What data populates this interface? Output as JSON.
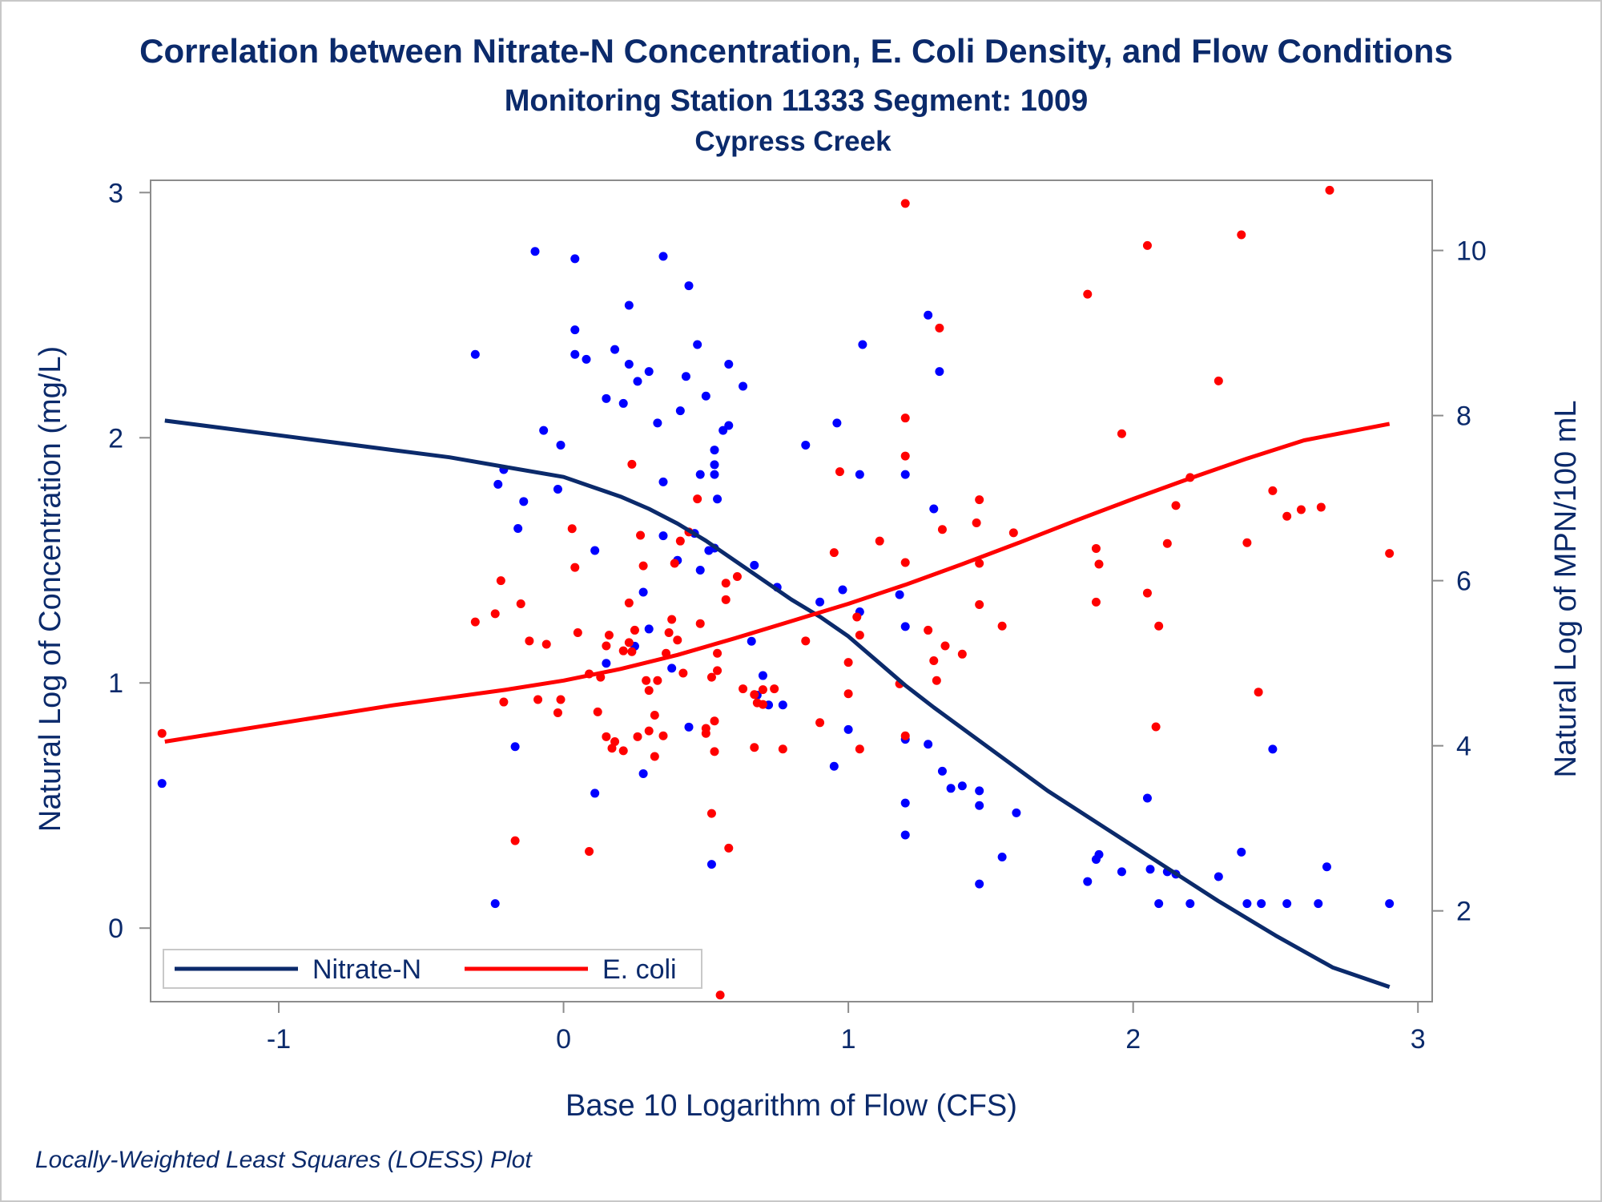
{
  "chart_data": {
    "type": "scatter",
    "title": "Correlation between Nitrate-N Concentration, E. Coli Density, and Flow Conditions",
    "subtitle": "Monitoring Station 11333 Segment: 1009",
    "subtitle2": "Cypress Creek",
    "xlabel": "Base 10 Logarithm of Flow (CFS)",
    "ylabel": "Natural Log of Concentration (mg/L)",
    "y2label": "Natural Log of MPN/100 mL",
    "footnote": "Locally-Weighted Least Squares (LOESS) Plot",
    "xlim": [
      -1.45,
      3.05
    ],
    "ylim": [
      -0.3,
      3.05
    ],
    "y2lim": [
      0.9,
      10.85
    ],
    "xticks": [
      "-1",
      "0",
      "1",
      "2",
      "3"
    ],
    "yticks": [
      "0",
      "1",
      "2",
      "3"
    ],
    "y2ticks": [
      "2",
      "4",
      "6",
      "8",
      "10"
    ],
    "colors": {
      "nitrate": "#0b2a6b",
      "ecoli": "#ff0000",
      "nitrate_points": "#0000ff",
      "ecoli_points": "#ff0000"
    },
    "legend": {
      "position": "bottom-left",
      "entries": [
        "Nitrate-N",
        "E. coli"
      ]
    },
    "series": [
      {
        "name": "Nitrate-N",
        "axis": "left",
        "points": [
          [
            -1.41,
            0.59
          ],
          [
            -0.31,
            2.34
          ],
          [
            -0.24,
            0.1
          ],
          [
            -0.23,
            1.81
          ],
          [
            -0.21,
            1.87
          ],
          [
            -0.17,
            0.74
          ],
          [
            -0.16,
            1.63
          ],
          [
            -0.14,
            1.74
          ],
          [
            -0.1,
            2.76
          ],
          [
            -0.07,
            2.03
          ],
          [
            -0.02,
            1.79
          ],
          [
            -0.01,
            1.97
          ],
          [
            0.04,
            2.73
          ],
          [
            0.04,
            2.44
          ],
          [
            0.04,
            2.34
          ],
          [
            0.08,
            2.32
          ],
          [
            0.11,
            1.54
          ],
          [
            0.11,
            0.55
          ],
          [
            0.15,
            1.08
          ],
          [
            0.15,
            2.16
          ],
          [
            0.18,
            2.36
          ],
          [
            0.21,
            2.14
          ],
          [
            0.23,
            2.3
          ],
          [
            0.23,
            2.54
          ],
          [
            0.25,
            1.15
          ],
          [
            0.26,
            2.23
          ],
          [
            0.28,
            0.63
          ],
          [
            0.28,
            1.37
          ],
          [
            0.3,
            1.22
          ],
          [
            0.3,
            2.27
          ],
          [
            0.33,
            2.06
          ],
          [
            0.35,
            1.6
          ],
          [
            0.35,
            1.82
          ],
          [
            0.35,
            2.74
          ],
          [
            0.38,
            1.06
          ],
          [
            0.4,
            1.5
          ],
          [
            0.41,
            2.11
          ],
          [
            0.43,
            2.25
          ],
          [
            0.44,
            2.62
          ],
          [
            0.44,
            0.82
          ],
          [
            0.46,
            1.61
          ],
          [
            0.47,
            2.38
          ],
          [
            0.48,
            1.46
          ],
          [
            0.48,
            1.85
          ],
          [
            0.5,
            2.17
          ],
          [
            0.51,
            1.54
          ],
          [
            0.52,
            0.26
          ],
          [
            0.53,
            1.55
          ],
          [
            0.53,
            1.95
          ],
          [
            0.53,
            1.85
          ],
          [
            0.53,
            1.89
          ],
          [
            0.54,
            1.75
          ],
          [
            0.56,
            2.03
          ],
          [
            0.58,
            2.05
          ],
          [
            0.58,
            2.3
          ],
          [
            0.63,
            2.21
          ],
          [
            0.66,
            1.17
          ],
          [
            0.67,
            1.48
          ],
          [
            0.68,
            0.95
          ],
          [
            0.7,
            1.03
          ],
          [
            0.72,
            0.91
          ],
          [
            0.75,
            1.39
          ],
          [
            0.77,
            0.91
          ],
          [
            0.85,
            1.97
          ],
          [
            0.9,
            1.33
          ],
          [
            0.95,
            0.66
          ],
          [
            0.96,
            2.06
          ],
          [
            0.98,
            1.38
          ],
          [
            1.0,
            0.81
          ],
          [
            1.04,
            1.29
          ],
          [
            1.04,
            1.85
          ],
          [
            1.05,
            2.38
          ],
          [
            1.18,
            1.36
          ],
          [
            1.2,
            0.77
          ],
          [
            1.2,
            0.51
          ],
          [
            1.2,
            0.38
          ],
          [
            1.2,
            1.85
          ],
          [
            1.2,
            1.23
          ],
          [
            1.28,
            2.5
          ],
          [
            1.28,
            0.75
          ],
          [
            1.3,
            1.71
          ],
          [
            1.32,
            2.27
          ],
          [
            1.33,
            0.64
          ],
          [
            1.36,
            0.57
          ],
          [
            1.4,
            0.58
          ],
          [
            1.46,
            0.56
          ],
          [
            1.46,
            0.5
          ],
          [
            1.46,
            0.18
          ],
          [
            1.54,
            0.29
          ],
          [
            1.59,
            0.47
          ],
          [
            1.84,
            0.19
          ],
          [
            1.87,
            0.28
          ],
          [
            1.88,
            0.3
          ],
          [
            1.96,
            0.23
          ],
          [
            2.05,
            0.53
          ],
          [
            2.06,
            0.24
          ],
          [
            2.09,
            0.1
          ],
          [
            2.12,
            0.23
          ],
          [
            2.15,
            0.22
          ],
          [
            2.2,
            0.1
          ],
          [
            2.3,
            0.21
          ],
          [
            2.38,
            0.31
          ],
          [
            2.4,
            0.1
          ],
          [
            2.45,
            0.1
          ],
          [
            2.49,
            0.73
          ],
          [
            2.54,
            0.1
          ],
          [
            2.65,
            0.1
          ],
          [
            2.68,
            0.25
          ],
          [
            2.9,
            0.1
          ]
        ],
        "loess": [
          [
            -1.4,
            2.07
          ],
          [
            -1.2,
            2.04
          ],
          [
            -1.0,
            2.01
          ],
          [
            -0.8,
            1.98
          ],
          [
            -0.6,
            1.95
          ],
          [
            -0.4,
            1.92
          ],
          [
            -0.2,
            1.88
          ],
          [
            0.0,
            1.84
          ],
          [
            0.1,
            1.8
          ],
          [
            0.2,
            1.76
          ],
          [
            0.3,
            1.71
          ],
          [
            0.4,
            1.65
          ],
          [
            0.5,
            1.58
          ],
          [
            0.6,
            1.5
          ],
          [
            0.7,
            1.42
          ],
          [
            0.8,
            1.34
          ],
          [
            0.9,
            1.27
          ],
          [
            1.0,
            1.19
          ],
          [
            1.1,
            1.09
          ],
          [
            1.2,
            0.99
          ],
          [
            1.3,
            0.9
          ],
          [
            1.5,
            0.73
          ],
          [
            1.7,
            0.56
          ],
          [
            1.9,
            0.41
          ],
          [
            2.1,
            0.26
          ],
          [
            2.3,
            0.11
          ],
          [
            2.5,
            -0.03
          ],
          [
            2.7,
            -0.16
          ],
          [
            2.9,
            -0.24
          ]
        ]
      },
      {
        "name": "E. coli",
        "axis": "right",
        "points": [
          [
            -1.41,
            4.15
          ],
          [
            -0.31,
            5.5
          ],
          [
            -0.24,
            5.6
          ],
          [
            -0.22,
            6.0
          ],
          [
            -0.21,
            4.53
          ],
          [
            -0.17,
            2.85
          ],
          [
            -0.15,
            5.72
          ],
          [
            -0.12,
            5.27
          ],
          [
            -0.09,
            4.56
          ],
          [
            -0.06,
            5.23
          ],
          [
            -0.02,
            4.4
          ],
          [
            -0.01,
            4.56
          ],
          [
            0.03,
            6.63
          ],
          [
            0.04,
            6.16
          ],
          [
            0.05,
            5.37
          ],
          [
            0.09,
            2.72
          ],
          [
            0.09,
            4.87
          ],
          [
            0.12,
            4.41
          ],
          [
            0.13,
            4.83
          ],
          [
            0.15,
            4.11
          ],
          [
            0.15,
            5.21
          ],
          [
            0.16,
            5.34
          ],
          [
            0.17,
            3.97
          ],
          [
            0.18,
            4.05
          ],
          [
            0.21,
            3.94
          ],
          [
            0.21,
            5.15
          ],
          [
            0.23,
            5.25
          ],
          [
            0.24,
            5.14
          ],
          [
            0.23,
            5.73
          ],
          [
            0.24,
            7.41
          ],
          [
            0.25,
            5.4
          ],
          [
            0.26,
            4.11
          ],
          [
            0.27,
            6.55
          ],
          [
            0.28,
            6.18
          ],
          [
            0.29,
            4.79
          ],
          [
            0.3,
            4.18
          ],
          [
            0.3,
            4.67
          ],
          [
            0.32,
            3.87
          ],
          [
            0.32,
            4.37
          ],
          [
            0.33,
            4.79
          ],
          [
            0.35,
            4.12
          ],
          [
            0.36,
            5.12
          ],
          [
            0.37,
            5.37
          ],
          [
            0.38,
            5.53
          ],
          [
            0.39,
            6.21
          ],
          [
            0.4,
            5.28
          ],
          [
            0.41,
            6.48
          ],
          [
            0.42,
            4.88
          ],
          [
            0.44,
            6.59
          ],
          [
            0.47,
            6.99
          ],
          [
            0.48,
            5.48
          ],
          [
            0.5,
            4.15
          ],
          [
            0.5,
            4.21
          ],
          [
            0.52,
            3.18
          ],
          [
            0.52,
            4.83
          ],
          [
            0.53,
            3.93
          ],
          [
            0.53,
            4.3
          ],
          [
            0.54,
            4.91
          ],
          [
            0.54,
            5.12
          ],
          [
            0.55,
            0.98
          ],
          [
            0.57,
            5.97
          ],
          [
            0.57,
            5.77
          ],
          [
            0.58,
            2.76
          ],
          [
            0.61,
            6.05
          ],
          [
            0.63,
            4.69
          ],
          [
            0.67,
            4.62
          ],
          [
            0.67,
            3.98
          ],
          [
            0.68,
            4.52
          ],
          [
            0.7,
            4.5
          ],
          [
            0.7,
            4.68
          ],
          [
            0.74,
            4.69
          ],
          [
            0.77,
            3.96
          ],
          [
            0.85,
            5.27
          ],
          [
            0.9,
            4.28
          ],
          [
            0.95,
            6.34
          ],
          [
            0.97,
            7.32
          ],
          [
            1.0,
            5.01
          ],
          [
            1.0,
            4.63
          ],
          [
            1.03,
            5.56
          ],
          [
            1.04,
            5.34
          ],
          [
            1.04,
            3.96
          ],
          [
            1.11,
            6.48
          ],
          [
            1.18,
            4.75
          ],
          [
            1.2,
            4.12
          ],
          [
            1.2,
            6.22
          ],
          [
            1.2,
            7.51
          ],
          [
            1.2,
            7.97
          ],
          [
            1.2,
            10.57
          ],
          [
            1.28,
            5.4
          ],
          [
            1.3,
            5.03
          ],
          [
            1.31,
            4.79
          ],
          [
            1.32,
            9.06
          ],
          [
            1.33,
            6.62
          ],
          [
            1.34,
            5.21
          ],
          [
            1.4,
            5.11
          ],
          [
            1.45,
            6.7
          ],
          [
            1.46,
            6.21
          ],
          [
            1.46,
            5.71
          ],
          [
            1.46,
            6.98
          ],
          [
            1.54,
            5.45
          ],
          [
            1.58,
            6.58
          ],
          [
            1.84,
            9.47
          ],
          [
            1.87,
            6.39
          ],
          [
            1.87,
            5.74
          ],
          [
            1.88,
            6.2
          ],
          [
            1.96,
            7.78
          ],
          [
            2.05,
            10.06
          ],
          [
            2.05,
            5.85
          ],
          [
            2.08,
            4.23
          ],
          [
            2.09,
            5.45
          ],
          [
            2.12,
            6.45
          ],
          [
            2.15,
            6.91
          ],
          [
            2.2,
            7.25
          ],
          [
            2.3,
            8.42
          ],
          [
            2.38,
            10.19
          ],
          [
            2.4,
            6.46
          ],
          [
            2.44,
            4.65
          ],
          [
            2.49,
            7.09
          ],
          [
            2.54,
            6.78
          ],
          [
            2.59,
            6.86
          ],
          [
            2.66,
            6.89
          ],
          [
            2.69,
            10.73
          ],
          [
            2.9,
            6.33
          ]
        ],
        "loess": [
          [
            -1.4,
            4.05
          ],
          [
            -1.0,
            4.27
          ],
          [
            -0.6,
            4.49
          ],
          [
            -0.2,
            4.68
          ],
          [
            0.0,
            4.79
          ],
          [
            0.2,
            4.93
          ],
          [
            0.4,
            5.1
          ],
          [
            0.6,
            5.3
          ],
          [
            0.8,
            5.51
          ],
          [
            1.0,
            5.72
          ],
          [
            1.2,
            5.95
          ],
          [
            1.4,
            6.2
          ],
          [
            1.6,
            6.46
          ],
          [
            1.8,
            6.73
          ],
          [
            2.0,
            6.99
          ],
          [
            2.2,
            7.24
          ],
          [
            2.4,
            7.48
          ],
          [
            2.6,
            7.7
          ],
          [
            2.9,
            7.9
          ]
        ]
      }
    ]
  }
}
